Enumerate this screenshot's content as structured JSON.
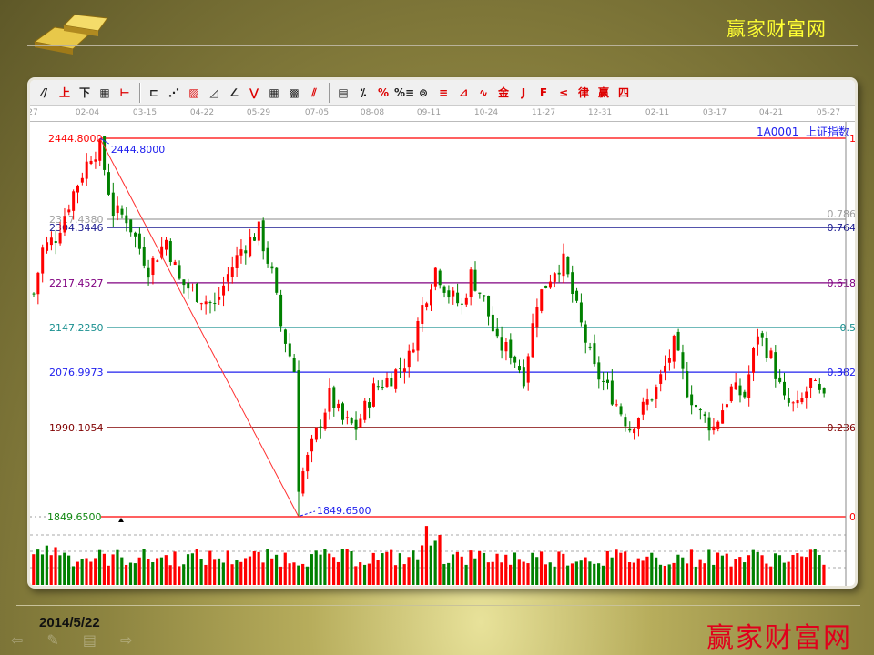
{
  "slide": {
    "brand_top": "赢家财富网",
    "date": "2014/5/22",
    "brand_bottom": "赢家财富网"
  },
  "toolbar": {
    "icons": [
      "line-tool",
      "text-tool-上",
      "text-tool-下",
      "box-tool",
      "range-tool",
      "fork-tool",
      "fan-tool",
      "gann-box-tool",
      "gann-fan-tool",
      "angle-tool",
      "zigzag-tool",
      "grid-tool",
      "grid-tool-2",
      "parallel-tool",
      "table-tool",
      "percent-line-tool",
      "percent-tool",
      "percent-level-tool",
      "gold-circle-tool",
      "gold-line-tool",
      "arrow-tool",
      "wave-tool",
      "gold-tool",
      "j-tool",
      "f-tool",
      "gold-fan-tool",
      "trend-tool",
      "win-tool",
      "four-tool"
    ],
    "percent_label": "%"
  },
  "security": {
    "code": "1A0001",
    "name": "上证指数"
  },
  "colors": {
    "up": "#ff0000",
    "down": "#008000",
    "background": "#ffffff"
  },
  "chart_data": {
    "type": "candlestick",
    "x_tick_labels": [
      "27",
      "02-04",
      "03-15",
      "04-22",
      "05-29",
      "07-05",
      "08-08",
      "09-11",
      "10-24",
      "11-27",
      "12-31",
      "02-11",
      "03-17",
      "04-21",
      "05-27"
    ],
    "high": {
      "value": 2444.8,
      "label": "2444.8000"
    },
    "low": {
      "value": 1849.65,
      "label": "1849.6500"
    },
    "fibonacci": [
      {
        "ratio": "1",
        "price": "2444.8000",
        "color": "#ff0000"
      },
      {
        "ratio": "0.786",
        "price": "2317.4380",
        "color": "#a0a0a0"
      },
      {
        "ratio": "0.764",
        "price": "2304.3446",
        "color": "#1a1a90"
      },
      {
        "ratio": "0.618",
        "price": "2217.4527",
        "color": "#800080"
      },
      {
        "ratio": "0.5",
        "price": "2147.2250",
        "color": "#1a9090"
      },
      {
        "ratio": "0.382",
        "price": "2076.9973",
        "color": "#2020ee"
      },
      {
        "ratio": "0.236",
        "price": "1990.1054",
        "color": "#800000"
      },
      {
        "ratio": "0",
        "price": "1849.6500",
        "color": "#ff0000"
      }
    ],
    "close_path": [
      [
        0,
        2200
      ],
      [
        2,
        2270
      ],
      [
        5,
        2290
      ],
      [
        9,
        2360
      ],
      [
        13,
        2420
      ],
      [
        15,
        2430
      ],
      [
        18,
        2330
      ],
      [
        21,
        2320
      ],
      [
        26,
        2240
      ],
      [
        30,
        2285
      ],
      [
        33,
        2220
      ],
      [
        37,
        2200
      ],
      [
        41,
        2180
      ],
      [
        44,
        2230
      ],
      [
        47,
        2270
      ],
      [
        51,
        2300
      ],
      [
        54,
        2230
      ],
      [
        56,
        2150
      ],
      [
        59,
        2080
      ],
      [
        60,
        1900
      ],
      [
        63,
        1960
      ],
      [
        67,
        2040
      ],
      [
        70,
        2000
      ],
      [
        73,
        1990
      ],
      [
        77,
        2050
      ],
      [
        81,
        2070
      ],
      [
        85,
        2100
      ],
      [
        88,
        2180
      ],
      [
        91,
        2240
      ],
      [
        94,
        2200
      ],
      [
        97,
        2180
      ],
      [
        99,
        2230
      ],
      [
        102,
        2190
      ],
      [
        105,
        2120
      ],
      [
        108,
        2110
      ],
      [
        111,
        2070
      ],
      [
        114,
        2190
      ],
      [
        118,
        2240
      ],
      [
        120,
        2250
      ],
      [
        124,
        2150
      ],
      [
        127,
        2080
      ],
      [
        131,
        2040
      ],
      [
        135,
        1990
      ],
      [
        137,
        2010
      ],
      [
        141,
        2050
      ],
      [
        145,
        2120
      ],
      [
        148,
        2050
      ],
      [
        151,
        2010
      ],
      [
        154,
        1990
      ],
      [
        158,
        2050
      ],
      [
        161,
        2040
      ],
      [
        164,
        2140
      ],
      [
        167,
        2100
      ],
      [
        170,
        2030
      ],
      [
        173,
        2020
      ],
      [
        176,
        2060
      ],
      [
        179,
        2030
      ]
    ],
    "ylim": [
      1849.65,
      2444.8
    ]
  }
}
